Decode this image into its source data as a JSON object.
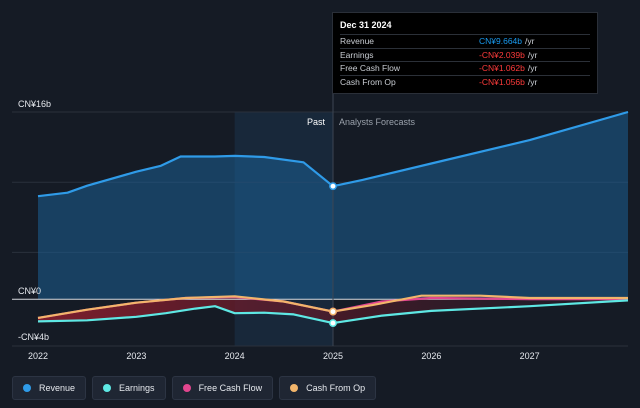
{
  "chart_data": {
    "type": "line",
    "y_tick_labels": [
      "CN¥16b",
      "CN¥0",
      "-CN¥4b"
    ],
    "x_tick_labels": [
      "2022",
      "2023",
      "2024",
      "2025",
      "2026",
      "2027"
    ],
    "ylim": [
      -4,
      16
    ],
    "xlim": [
      2022,
      2028
    ],
    "divider_x": 2025.0,
    "past_label": "Past",
    "forecast_label": "Analysts Forecasts",
    "grid": true,
    "legend_placement": "bottom",
    "series": [
      {
        "name": "Revenue",
        "color": "#2f9be8",
        "points": [
          [
            2022.0,
            8.8
          ],
          [
            2022.3,
            9.1
          ],
          [
            2022.5,
            9.7
          ],
          [
            2023.0,
            10.9
          ],
          [
            2023.25,
            11.4
          ],
          [
            2023.45,
            12.2
          ],
          [
            2023.8,
            12.2
          ],
          [
            2024.0,
            12.25
          ],
          [
            2024.3,
            12.15
          ],
          [
            2024.7,
            11.7
          ],
          [
            2025.0,
            9.66
          ],
          [
            2025.3,
            10.2
          ],
          [
            2026.0,
            11.6
          ],
          [
            2027.0,
            13.6
          ],
          [
            2028.0,
            16.0
          ]
        ]
      },
      {
        "name": "Earnings",
        "color": "#5ee8e4",
        "points": [
          [
            2022.0,
            -1.9
          ],
          [
            2022.5,
            -1.8
          ],
          [
            2023.0,
            -1.5
          ],
          [
            2023.3,
            -1.2
          ],
          [
            2023.6,
            -0.8
          ],
          [
            2023.8,
            -0.6
          ],
          [
            2024.0,
            -1.2
          ],
          [
            2024.3,
            -1.15
          ],
          [
            2024.6,
            -1.3
          ],
          [
            2025.0,
            -2.04
          ],
          [
            2025.5,
            -1.4
          ],
          [
            2026.0,
            -1.0
          ],
          [
            2027.0,
            -0.6
          ],
          [
            2028.0,
            -0.1
          ]
        ]
      },
      {
        "name": "Free Cash Flow",
        "color": "#e2468f",
        "points": [
          [
            2022.0,
            -1.6
          ],
          [
            2022.5,
            -0.9
          ],
          [
            2023.0,
            -0.3
          ],
          [
            2023.5,
            0.1
          ],
          [
            2024.0,
            0.2
          ],
          [
            2024.5,
            -0.2
          ],
          [
            2025.0,
            -1.06
          ],
          [
            2025.5,
            -0.2
          ],
          [
            2026.0,
            0.1
          ],
          [
            2027.0,
            0.0
          ],
          [
            2028.0,
            0.0
          ]
        ]
      },
      {
        "name": "Cash From Op",
        "color": "#f2b56b",
        "points": [
          [
            2022.0,
            -1.6
          ],
          [
            2022.5,
            -0.9
          ],
          [
            2023.0,
            -0.3
          ],
          [
            2023.5,
            0.1
          ],
          [
            2024.0,
            0.25
          ],
          [
            2024.5,
            -0.2
          ],
          [
            2025.0,
            -1.06
          ],
          [
            2025.4,
            -0.5
          ],
          [
            2025.9,
            0.3
          ],
          [
            2026.5,
            0.3
          ],
          [
            2027.0,
            0.1
          ],
          [
            2028.0,
            0.1
          ]
        ]
      }
    ]
  },
  "tooltip": {
    "date": "Dec 31 2024",
    "rows": [
      {
        "name": "Revenue",
        "value": "CN¥9.664b",
        "unit": "/yr"
      },
      {
        "name": "Earnings",
        "value": "-CN¥2.039b",
        "unit": "/yr"
      },
      {
        "name": "Free Cash Flow",
        "value": "-CN¥1.062b",
        "unit": "/yr"
      },
      {
        "name": "Cash From Op",
        "value": "-CN¥1.056b",
        "unit": "/yr"
      }
    ]
  },
  "legend": [
    {
      "label": "Revenue",
      "color": "#2f9be8"
    },
    {
      "label": "Earnings",
      "color": "#5ee8e4"
    },
    {
      "label": "Free Cash Flow",
      "color": "#e2468f"
    },
    {
      "label": "Cash From Op",
      "color": "#f2b56b"
    }
  ]
}
